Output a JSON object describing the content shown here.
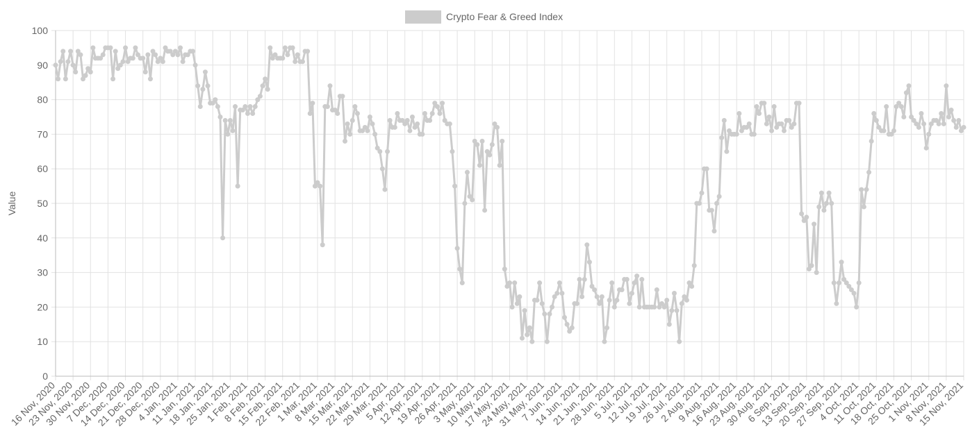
{
  "chart_data": {
    "type": "line",
    "legend": "top",
    "y_label": "Value",
    "ylim": [
      0,
      100
    ],
    "yticks": [
      0,
      10,
      20,
      30,
      40,
      50,
      60,
      70,
      80,
      90,
      100
    ],
    "grid": true,
    "categories": [
      "16 Nov, 2020",
      null,
      null,
      null,
      null,
      null,
      null,
      "23 Nov, 2020",
      null,
      null,
      null,
      null,
      null,
      null,
      "30 Nov, 2020",
      null,
      null,
      null,
      null,
      null,
      null,
      "7 Dec, 2020",
      null,
      null,
      null,
      null,
      null,
      null,
      "14 Dec, 2020",
      null,
      null,
      null,
      null,
      null,
      null,
      "21 Dec, 2020",
      null,
      null,
      null,
      null,
      null,
      null,
      "28 Dec, 2020",
      null,
      null,
      null,
      null,
      null,
      null,
      "4 Jan, 2021",
      null,
      null,
      null,
      null,
      null,
      null,
      "11 Jan, 2021",
      null,
      null,
      null,
      null,
      null,
      null,
      "18 Jan, 2021",
      null,
      null,
      null,
      null,
      null,
      null,
      "25 Jan, 2021",
      null,
      null,
      null,
      null,
      null,
      null,
      "1 Feb, 2021",
      null,
      null,
      null,
      null,
      null,
      null,
      "8 Feb, 2021",
      null,
      null,
      null,
      null,
      null,
      null,
      "15 Feb, 2021",
      null,
      null,
      null,
      null,
      null,
      null,
      "22 Feb, 2021",
      null,
      null,
      null,
      null,
      null,
      null,
      "1 Mar, 2021",
      null,
      null,
      null,
      null,
      null,
      null,
      "8 Mar, 2021",
      null,
      null,
      null,
      null,
      null,
      null,
      "15 Mar, 2021",
      null,
      null,
      null,
      null,
      null,
      null,
      "22 Mar, 2021",
      null,
      null,
      null,
      null,
      null,
      null,
      "29 Mar, 2021",
      null,
      null,
      null,
      null,
      null,
      null,
      "5 Apr, 2021",
      null,
      null,
      null,
      null,
      null,
      null,
      "12 Apr, 2021",
      null,
      null,
      null,
      null,
      null,
      null,
      "19 Apr, 2021",
      null,
      null,
      null,
      null,
      null,
      null,
      "26 Apr, 2021",
      null,
      null,
      null,
      null,
      null,
      null,
      "3 May, 2021",
      null,
      null,
      null,
      null,
      null,
      null,
      "10 May, 2021",
      null,
      null,
      null,
      null,
      null,
      null,
      "17 May, 2021",
      null,
      null,
      null,
      null,
      null,
      null,
      "24 May, 2021",
      null,
      null,
      null,
      null,
      null,
      null,
      "31 May, 2021",
      null,
      null,
      null,
      null,
      null,
      null,
      "7 Jun, 2021",
      null,
      null,
      null,
      null,
      null,
      null,
      "14 Jun, 2021",
      null,
      null,
      null,
      null,
      null,
      null,
      "21 Jun, 2021",
      null,
      null,
      null,
      null,
      null,
      null,
      "28 Jun, 2021",
      null,
      null,
      null,
      null,
      null,
      null,
      "5 Jul, 2021",
      null,
      null,
      null,
      null,
      null,
      null,
      "12 Jul, 2021",
      null,
      null,
      null,
      null,
      null,
      null,
      "19 Jul, 2021",
      null,
      null,
      null,
      null,
      null,
      null,
      "26 Jul, 2021",
      null,
      null,
      null,
      null,
      null,
      null,
      "2 Aug, 2021",
      null,
      null,
      null,
      null,
      null,
      null,
      "9 Aug, 2021",
      null,
      null,
      null,
      null,
      null,
      null,
      "16 Aug, 2021",
      null,
      null,
      null,
      null,
      null,
      null,
      "23 Aug, 2021",
      null,
      null,
      null,
      null,
      null,
      null,
      "30 Aug, 2021",
      null,
      null,
      null,
      null,
      null,
      null,
      "6 Sep, 2021",
      null,
      null,
      null,
      null,
      null,
      null,
      "13 Sep, 2021",
      null,
      null,
      null,
      null,
      null,
      null,
      "20 Sep, 2021",
      null,
      null,
      null,
      null,
      null,
      null,
      "27 Sep, 2021",
      null,
      null,
      null,
      null,
      null,
      null,
      "4 Oct, 2021",
      null,
      null,
      null,
      null,
      null,
      null,
      "11 Oct, 2021",
      null,
      null,
      null,
      null,
      null,
      null,
      "18 Oct, 2021",
      null,
      null,
      null,
      null,
      null,
      null,
      "25 Oct, 2021",
      null,
      null,
      null,
      null,
      null,
      null,
      "1 Nov, 2021",
      null,
      null,
      null,
      null,
      null,
      null,
      "8 Nov, 2021",
      null,
      null,
      null,
      null,
      null,
      null,
      "15 Nov, 2021"
    ],
    "series": [
      {
        "name": "Crypto Fear & Greed Index",
        "color": "#cccccc",
        "values": [
          90,
          86,
          91,
          94,
          86,
          91,
          94,
          90,
          88,
          94,
          93,
          86,
          87,
          89,
          88,
          95,
          92,
          92,
          92,
          93,
          95,
          95,
          95,
          86,
          94,
          89,
          90,
          91,
          95,
          91,
          92,
          92,
          95,
          93,
          92,
          92,
          88,
          93,
          86,
          94,
          93,
          91,
          92,
          91,
          95,
          94,
          94,
          93,
          94,
          93,
          95,
          91,
          93,
          93,
          94,
          94,
          90,
          84,
          78,
          83,
          88,
          84,
          79,
          79,
          80,
          78,
          75,
          40,
          74,
          70,
          74,
          71,
          78,
          55,
          77,
          77,
          78,
          76,
          78,
          76,
          78,
          80,
          81,
          84,
          86,
          83,
          95,
          92,
          93,
          92,
          92,
          92,
          95,
          93,
          95,
          95,
          91,
          93,
          91,
          91,
          94,
          94,
          76,
          79,
          55,
          56,
          55,
          38,
          78,
          78,
          84,
          77,
          77,
          76,
          81,
          81,
          68,
          73,
          70,
          74,
          78,
          76,
          71,
          71,
          72,
          71,
          75,
          73,
          70,
          66,
          65,
          60,
          54,
          65,
          74,
          72,
          72,
          76,
          74,
          74,
          73,
          74,
          71,
          75,
          72,
          73,
          70,
          70,
          76,
          74,
          74,
          76,
          79,
          78,
          76,
          79,
          74,
          73,
          73,
          65,
          55,
          37,
          31,
          27,
          50,
          59,
          52,
          51,
          68,
          67,
          61,
          68,
          48,
          65,
          64,
          67,
          73,
          72,
          61,
          68,
          31,
          26,
          27,
          20,
          27,
          21,
          23,
          11,
          19,
          12,
          14,
          10,
          22,
          22,
          27,
          21,
          18,
          10,
          18,
          20,
          23,
          24,
          27,
          24,
          17,
          15,
          13,
          14,
          21,
          21,
          28,
          23,
          28,
          38,
          33,
          26,
          25,
          23,
          21,
          23,
          10,
          14,
          22,
          27,
          20,
          22,
          25,
          25,
          28,
          28,
          21,
          24,
          27,
          29,
          20,
          28,
          20,
          20,
          20,
          20,
          20,
          25,
          20,
          21,
          20,
          22,
          15,
          19,
          24,
          19,
          10,
          21,
          23,
          22,
          27,
          26,
          32,
          50,
          50,
          53,
          60,
          60,
          48,
          48,
          42,
          50,
          52,
          69,
          74,
          65,
          71,
          70,
          70,
          70,
          76,
          71,
          72,
          72,
          73,
          70,
          70,
          78,
          76,
          79,
          79,
          73,
          75,
          71,
          78,
          72,
          73,
          73,
          71,
          74,
          74,
          72,
          73,
          79,
          79,
          47,
          45,
          46,
          31,
          32,
          44,
          30,
          49,
          53,
          48,
          50,
          53,
          50,
          27,
          21,
          27,
          33,
          28,
          27,
          26,
          25,
          24,
          20,
          27,
          54,
          49,
          54,
          59,
          68,
          76,
          74,
          72,
          71,
          71,
          78,
          70,
          70,
          71,
          78,
          79,
          78,
          75,
          82,
          84,
          75,
          74,
          73,
          72,
          76,
          73,
          66,
          70,
          73,
          74,
          74,
          73,
          76,
          73,
          84,
          75,
          77,
          74,
          72,
          74,
          71,
          72
        ]
      }
    ]
  }
}
